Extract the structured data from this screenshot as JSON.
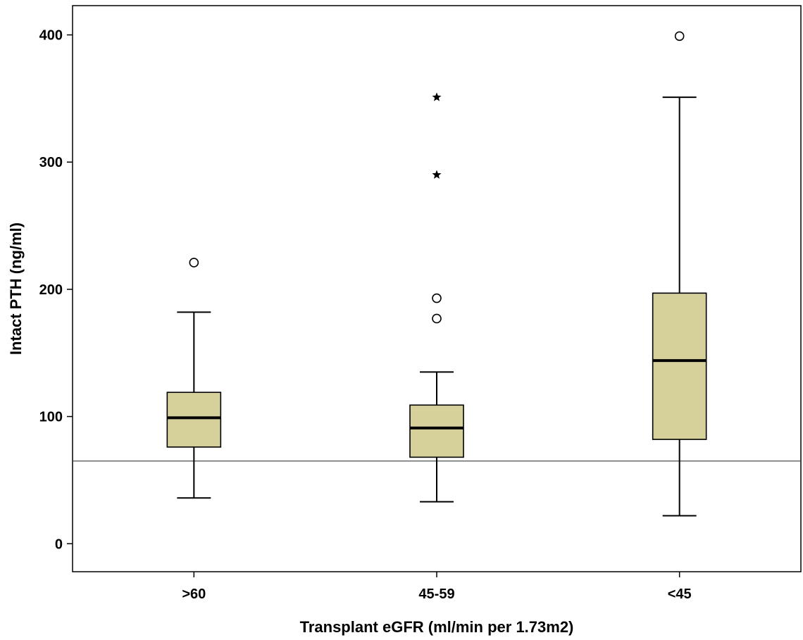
{
  "chart_data": {
    "type": "box",
    "title": "",
    "xlabel": "Transplant eGFR (ml/min per 1.73m2)",
    "ylabel": "Intact PTH (ng/ml)",
    "ylim": [
      -22,
      423
    ],
    "yticks": [
      0,
      100,
      200,
      300,
      400
    ],
    "ytick_labels": [
      "0",
      "100",
      "200",
      "300",
      "400"
    ],
    "categories": [
      ">60",
      "45-59",
      "<45"
    ],
    "reference_line": {
      "y": 65
    },
    "box_color": "#D6D19B",
    "grid": false,
    "boxes": [
      {
        "category": ">60",
        "whisker_low": 36,
        "q1": 76,
        "median": 99,
        "q3": 119,
        "whisker_high": 182,
        "outliers": [
          {
            "value": 221,
            "marker": "circle"
          }
        ]
      },
      {
        "category": "45-59",
        "whisker_low": 33,
        "q1": 68,
        "median": 91,
        "q3": 109,
        "whisker_high": 135,
        "outliers": [
          {
            "value": 177,
            "marker": "circle"
          },
          {
            "value": 193,
            "marker": "circle"
          },
          {
            "value": 290,
            "marker": "star"
          },
          {
            "value": 351,
            "marker": "star"
          }
        ]
      },
      {
        "category": "<45",
        "whisker_low": 22,
        "q1": 82,
        "median": 144,
        "q3": 197,
        "whisker_high": 351,
        "outliers": [
          {
            "value": 399,
            "marker": "circle"
          }
        ]
      }
    ]
  }
}
